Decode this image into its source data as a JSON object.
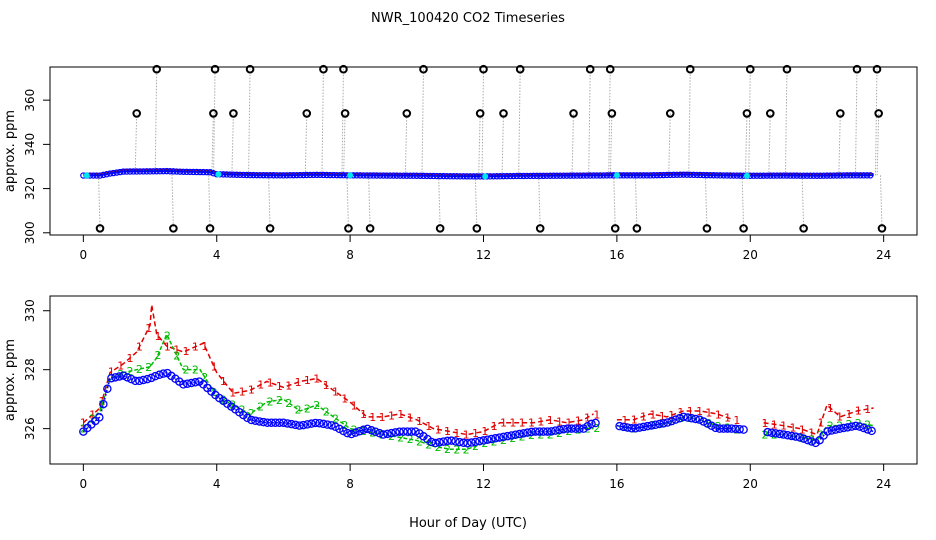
{
  "figure": {
    "title": "NWR_100420  CO2 Timeseries",
    "xlabel": "Hour of Day (UTC)"
  },
  "colors": {
    "line1": "#e00000",
    "line2": "#00bb00",
    "line3": "#0000ff",
    "hour_marker": "#00e5ee",
    "flag_points": "#000000",
    "flag_stems": "#aaaaaa"
  },
  "chart_data": [
    {
      "type": "scatter",
      "panel": "top",
      "ylabel": "approx. ppm",
      "xlim": [
        -1.0,
        25.0
      ],
      "ylim": [
        299.0,
        375.0
      ],
      "xticks": [
        0,
        4,
        8,
        12,
        16,
        20,
        24
      ],
      "yticks": [
        300,
        320,
        340,
        360
      ],
      "baseline": [
        [
          0,
          325.9
        ],
        [
          0.5,
          325.9
        ],
        [
          0.8,
          326.8
        ],
        [
          1.2,
          327.7
        ],
        [
          2.0,
          327.8
        ],
        [
          2.5,
          327.9
        ],
        [
          3.0,
          327.6
        ],
        [
          3.8,
          327.4
        ],
        [
          4.0,
          326.5
        ],
        [
          5.0,
          326.1
        ],
        [
          6.0,
          326.0
        ],
        [
          7.0,
          326.2
        ],
        [
          8.0,
          326.0
        ],
        [
          9.0,
          325.9
        ],
        [
          10.0,
          325.8
        ],
        [
          11.0,
          325.6
        ],
        [
          12.0,
          325.5
        ],
        [
          13.0,
          325.7
        ],
        [
          14.0,
          325.8
        ],
        [
          15.0,
          325.9
        ],
        [
          16.0,
          326.0
        ],
        [
          17.0,
          326.0
        ],
        [
          18.0,
          326.3
        ],
        [
          19.0,
          326.0
        ],
        [
          20.0,
          325.8
        ],
        [
          21.0,
          325.9
        ],
        [
          22.0,
          325.8
        ],
        [
          23.0,
          326.0
        ],
        [
          23.7,
          326.0
        ]
      ],
      "flagged_points": [
        {
          "x": 0.5,
          "y": 302.0
        },
        {
          "x": 1.6,
          "y": 354.0
        },
        {
          "x": 2.2,
          "y": 374.0
        },
        {
          "x": 2.7,
          "y": 302.0
        },
        {
          "x": 3.8,
          "y": 302.0
        },
        {
          "x": 3.9,
          "y": 354.0
        },
        {
          "x": 3.95,
          "y": 374.0
        },
        {
          "x": 4.5,
          "y": 354.0
        },
        {
          "x": 5.0,
          "y": 374.0
        },
        {
          "x": 5.6,
          "y": 302.0
        },
        {
          "x": 6.7,
          "y": 354.0
        },
        {
          "x": 7.2,
          "y": 374.0
        },
        {
          "x": 7.8,
          "y": 374.0
        },
        {
          "x": 7.85,
          "y": 354.0
        },
        {
          "x": 7.95,
          "y": 302.0
        },
        {
          "x": 8.6,
          "y": 302.0
        },
        {
          "x": 9.7,
          "y": 354.0
        },
        {
          "x": 10.2,
          "y": 374.0
        },
        {
          "x": 10.7,
          "y": 302.0
        },
        {
          "x": 11.8,
          "y": 302.0
        },
        {
          "x": 11.9,
          "y": 354.0
        },
        {
          "x": 12.0,
          "y": 374.0
        },
        {
          "x": 12.6,
          "y": 354.0
        },
        {
          "x": 13.1,
          "y": 374.0
        },
        {
          "x": 13.7,
          "y": 302.0
        },
        {
          "x": 14.7,
          "y": 354.0
        },
        {
          "x": 15.2,
          "y": 374.0
        },
        {
          "x": 15.8,
          "y": 374.0
        },
        {
          "x": 15.85,
          "y": 354.0
        },
        {
          "x": 15.95,
          "y": 302.0
        },
        {
          "x": 16.6,
          "y": 302.0
        },
        {
          "x": 17.6,
          "y": 354.0
        },
        {
          "x": 18.2,
          "y": 374.0
        },
        {
          "x": 18.7,
          "y": 302.0
        },
        {
          "x": 19.8,
          "y": 302.0
        },
        {
          "x": 19.9,
          "y": 354.0
        },
        {
          "x": 20.0,
          "y": 374.0
        },
        {
          "x": 20.6,
          "y": 354.0
        },
        {
          "x": 21.1,
          "y": 374.0
        },
        {
          "x": 21.6,
          "y": 302.0
        },
        {
          "x": 22.7,
          "y": 354.0
        },
        {
          "x": 23.2,
          "y": 374.0
        },
        {
          "x": 23.8,
          "y": 374.0
        },
        {
          "x": 23.85,
          "y": 354.0
        },
        {
          "x": 23.95,
          "y": 302.0
        }
      ]
    },
    {
      "type": "line",
      "panel": "bottom",
      "ylabel": "approx. ppm",
      "xlim": [
        -1.0,
        25.0
      ],
      "ylim": [
        324.8,
        330.5
      ],
      "xticks": [
        0,
        4,
        8,
        12,
        16,
        20,
        24
      ],
      "yticks": [
        326,
        328,
        330
      ],
      "gaps": [
        [
          15.4,
          16.0
        ],
        [
          19.8,
          20.4
        ]
      ],
      "series": [
        {
          "name": "1",
          "symbol": "1",
          "points": [
            [
              0,
              326.2
            ],
            [
              0.5,
              326.7
            ],
            [
              0.8,
              327.9
            ],
            [
              1.2,
              328.2
            ],
            [
              1.6,
              328.6
            ],
            [
              2.0,
              329.5
            ],
            [
              2.05,
              330.2
            ],
            [
              2.2,
              329.2
            ],
            [
              2.5,
              328.8
            ],
            [
              3.0,
              328.6
            ],
            [
              3.6,
              328.9
            ],
            [
              4.0,
              327.9
            ],
            [
              4.5,
              327.2
            ],
            [
              5.0,
              327.3
            ],
            [
              5.5,
              327.6
            ],
            [
              6.0,
              327.4
            ],
            [
              6.5,
              327.6
            ],
            [
              7.0,
              327.7
            ],
            [
              7.5,
              327.3
            ],
            [
              8.0,
              326.9
            ],
            [
              8.5,
              326.4
            ],
            [
              9.0,
              326.4
            ],
            [
              9.5,
              326.5
            ],
            [
              10.0,
              326.3
            ],
            [
              10.5,
              326.0
            ],
            [
              11.0,
              325.9
            ],
            [
              11.5,
              325.8
            ],
            [
              12.0,
              325.9
            ],
            [
              12.5,
              326.2
            ],
            [
              13.0,
              326.2
            ],
            [
              13.5,
              326.2
            ],
            [
              14.0,
              326.3
            ],
            [
              14.5,
              326.2
            ],
            [
              15.0,
              326.3
            ],
            [
              15.3,
              326.5
            ],
            [
              16.0,
              326.3
            ],
            [
              16.5,
              326.3
            ],
            [
              17.0,
              326.5
            ],
            [
              17.5,
              326.4
            ],
            [
              18.0,
              326.6
            ],
            [
              18.5,
              326.6
            ],
            [
              19.0,
              326.5
            ],
            [
              19.5,
              326.3
            ],
            [
              20.4,
              326.2
            ],
            [
              21.0,
              326.1
            ],
            [
              21.5,
              326.0
            ],
            [
              22.0,
              325.8
            ],
            [
              22.3,
              326.8
            ],
            [
              22.7,
              326.4
            ],
            [
              23.2,
              326.6
            ],
            [
              23.7,
              326.7
            ]
          ]
        },
        {
          "name": "2",
          "symbol": "2",
          "points": [
            [
              0,
              326.0
            ],
            [
              0.5,
              326.6
            ],
            [
              0.8,
              327.7
            ],
            [
              1.2,
              327.9
            ],
            [
              1.6,
              328.0
            ],
            [
              2.0,
              328.1
            ],
            [
              2.2,
              328.4
            ],
            [
              2.5,
              329.2
            ],
            [
              3.0,
              328.0
            ],
            [
              3.5,
              328.0
            ],
            [
              4.0,
              327.1
            ],
            [
              4.5,
              326.8
            ],
            [
              5.0,
              326.5
            ],
            [
              5.5,
              326.9
            ],
            [
              6.0,
              327.0
            ],
            [
              6.5,
              326.6
            ],
            [
              7.0,
              326.8
            ],
            [
              7.5,
              326.4
            ],
            [
              8.0,
              326.0
            ],
            [
              8.5,
              325.9
            ],
            [
              9.0,
              325.8
            ],
            [
              9.5,
              325.7
            ],
            [
              10.0,
              325.6
            ],
            [
              10.5,
              325.4
            ],
            [
              11.0,
              325.3
            ],
            [
              11.5,
              325.3
            ],
            [
              12.0,
              325.5
            ],
            [
              12.5,
              325.6
            ],
            [
              13.0,
              325.7
            ],
            [
              13.5,
              325.8
            ],
            [
              14.0,
              325.8
            ],
            [
              14.5,
              325.9
            ],
            [
              15.0,
              326.0
            ],
            [
              15.3,
              326.0
            ],
            [
              16.0,
              326.1
            ],
            [
              16.5,
              326.0
            ],
            [
              17.0,
              326.1
            ],
            [
              17.5,
              326.2
            ],
            [
              18.0,
              326.4
            ],
            [
              18.5,
              326.3
            ],
            [
              19.0,
              326.1
            ],
            [
              19.5,
              326.0
            ],
            [
              20.4,
              325.8
            ],
            [
              21.0,
              325.8
            ],
            [
              21.5,
              325.7
            ],
            [
              22.0,
              325.6
            ],
            [
              22.3,
              326.1
            ],
            [
              22.7,
              326.1
            ],
            [
              23.2,
              326.2
            ],
            [
              23.7,
              326.1
            ]
          ]
        },
        {
          "name": "3",
          "symbol": "o",
          "points": [
            [
              0,
              325.9
            ],
            [
              0.5,
              326.4
            ],
            [
              0.8,
              327.7
            ],
            [
              1.2,
              327.8
            ],
            [
              1.6,
              327.6
            ],
            [
              2.0,
              327.7
            ],
            [
              2.2,
              327.8
            ],
            [
              2.5,
              327.9
            ],
            [
              3.0,
              327.5
            ],
            [
              3.5,
              327.6
            ],
            [
              4.0,
              327.1
            ],
            [
              4.5,
              326.7
            ],
            [
              5.0,
              326.3
            ],
            [
              5.5,
              326.2
            ],
            [
              6.0,
              326.2
            ],
            [
              6.5,
              326.1
            ],
            [
              7.0,
              326.2
            ],
            [
              7.5,
              326.1
            ],
            [
              8.0,
              325.8
            ],
            [
              8.5,
              326.0
            ],
            [
              9.0,
              325.8
            ],
            [
              9.5,
              325.9
            ],
            [
              10.0,
              325.9
            ],
            [
              10.5,
              325.5
            ],
            [
              11.0,
              325.6
            ],
            [
              11.5,
              325.5
            ],
            [
              12.0,
              325.6
            ],
            [
              12.5,
              325.7
            ],
            [
              13.0,
              325.8
            ],
            [
              13.5,
              325.9
            ],
            [
              14.0,
              325.9
            ],
            [
              14.5,
              326.0
            ],
            [
              15.0,
              326.0
            ],
            [
              15.3,
              326.2
            ],
            [
              16.0,
              326.1
            ],
            [
              16.5,
              326.0
            ],
            [
              17.0,
              326.1
            ],
            [
              17.5,
              326.2
            ],
            [
              18.0,
              326.4
            ],
            [
              18.5,
              326.3
            ],
            [
              19.0,
              326.0
            ],
            [
              19.5,
              326.0
            ],
            [
              20.4,
              325.9
            ],
            [
              21.0,
              325.8
            ],
            [
              21.5,
              325.7
            ],
            [
              22.0,
              325.5
            ],
            [
              22.3,
              325.9
            ],
            [
              22.7,
              326.0
            ],
            [
              23.2,
              326.1
            ],
            [
              23.7,
              325.9
            ]
          ]
        }
      ]
    }
  ]
}
